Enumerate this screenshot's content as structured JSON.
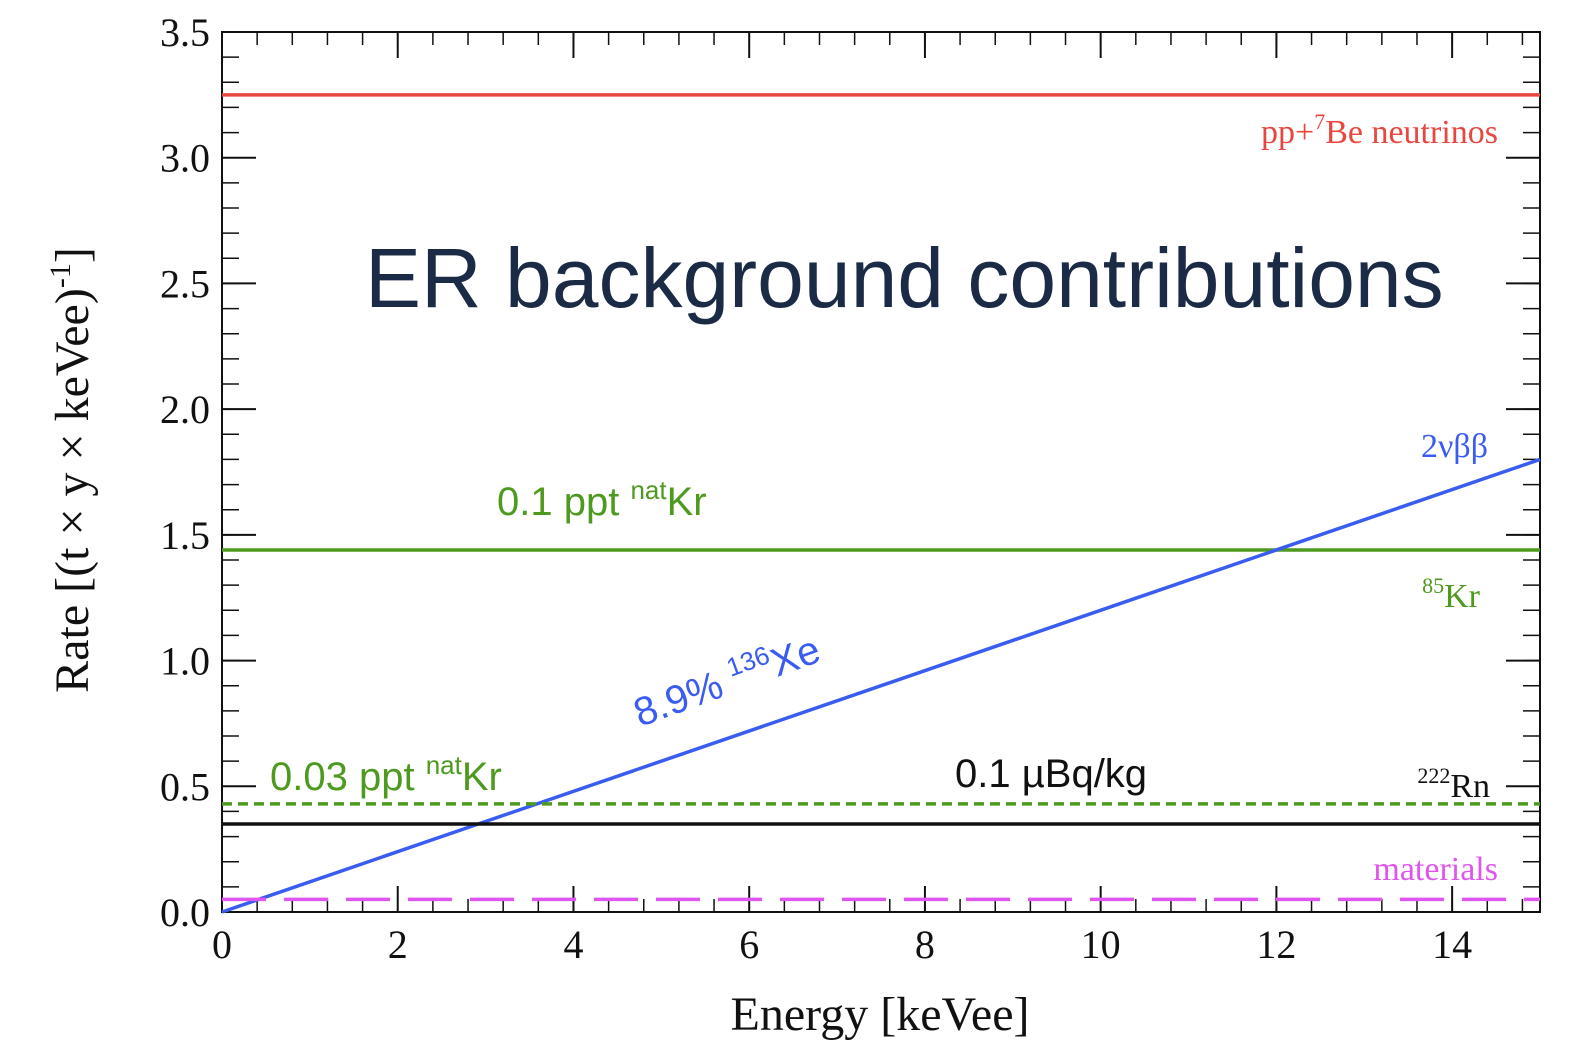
{
  "chart_data": {
    "type": "line",
    "title": "ER background contributions",
    "xlabel": "Energy [keVee]",
    "ylabel": "Rate [(t × y × keVee)",
    "ylabel_sup": "-1",
    "ylabel_close": "]",
    "xlim": [
      0,
      15
    ],
    "ylim": [
      0,
      3.5
    ],
    "x_ticks": [
      0,
      2,
      4,
      6,
      8,
      10,
      12,
      14
    ],
    "x_tick_labels": [
      "0",
      "2",
      "4",
      "6",
      "8",
      "10",
      "12",
      "14"
    ],
    "y_ticks": [
      0,
      0.5,
      1.0,
      1.5,
      2.0,
      2.5,
      3.0,
      3.5
    ],
    "y_tick_labels": [
      "0.0",
      "0.5",
      "1.0",
      "1.5",
      "2.0",
      "2.5",
      "3.0",
      "3.5"
    ],
    "grid": false,
    "series": [
      {
        "name": "pp+7Be neutrinos",
        "color": "#e8473f",
        "style": "solid",
        "x": [
          0,
          15
        ],
        "y": [
          3.25,
          3.25
        ]
      },
      {
        "name": "85Kr",
        "color": "#4d9a1f",
        "style": "solid",
        "x": [
          0,
          15
        ],
        "y": [
          1.44,
          1.44
        ]
      },
      {
        "name": "2νββ",
        "color": "#3a5cf0",
        "style": "solid",
        "x": [
          0,
          15
        ],
        "y": [
          0.0,
          1.8
        ]
      },
      {
        "name": "0.03 ppt natKr",
        "color": "#4d9a1f",
        "style": "dotted",
        "x": [
          0,
          15
        ],
        "y": [
          0.43,
          0.43
        ]
      },
      {
        "name": "222Rn",
        "color": "#111111",
        "style": "solid",
        "x": [
          0,
          15
        ],
        "y": [
          0.35,
          0.35
        ]
      },
      {
        "name": "materials",
        "color": "#e055f0",
        "style": "dashed",
        "x": [
          0,
          15
        ],
        "y": [
          0.05,
          0.05
        ]
      }
    ],
    "annotations": {
      "pp_neutrinos": {
        "pre": "pp+",
        "sup": "7",
        "post": "Be neutrinos"
      },
      "kr85": {
        "sup": "85",
        "post": "Kr"
      },
      "two_nu": {
        "text": "2νββ"
      },
      "rn222": {
        "sup": "222",
        "post": "Rn"
      },
      "materials": {
        "text": "materials"
      },
      "kr_01": {
        "pre": "0.1 ppt ",
        "sup": "nat",
        "post": "Kr"
      },
      "kr_003": {
        "pre": "0.03 ppt ",
        "sup": "nat",
        "post": "Kr"
      },
      "xe136": {
        "pre": "8.9% ",
        "sup": "136",
        "post": "Xe"
      },
      "rn_activity": {
        "text": "0.1 µBq/kg"
      }
    }
  }
}
